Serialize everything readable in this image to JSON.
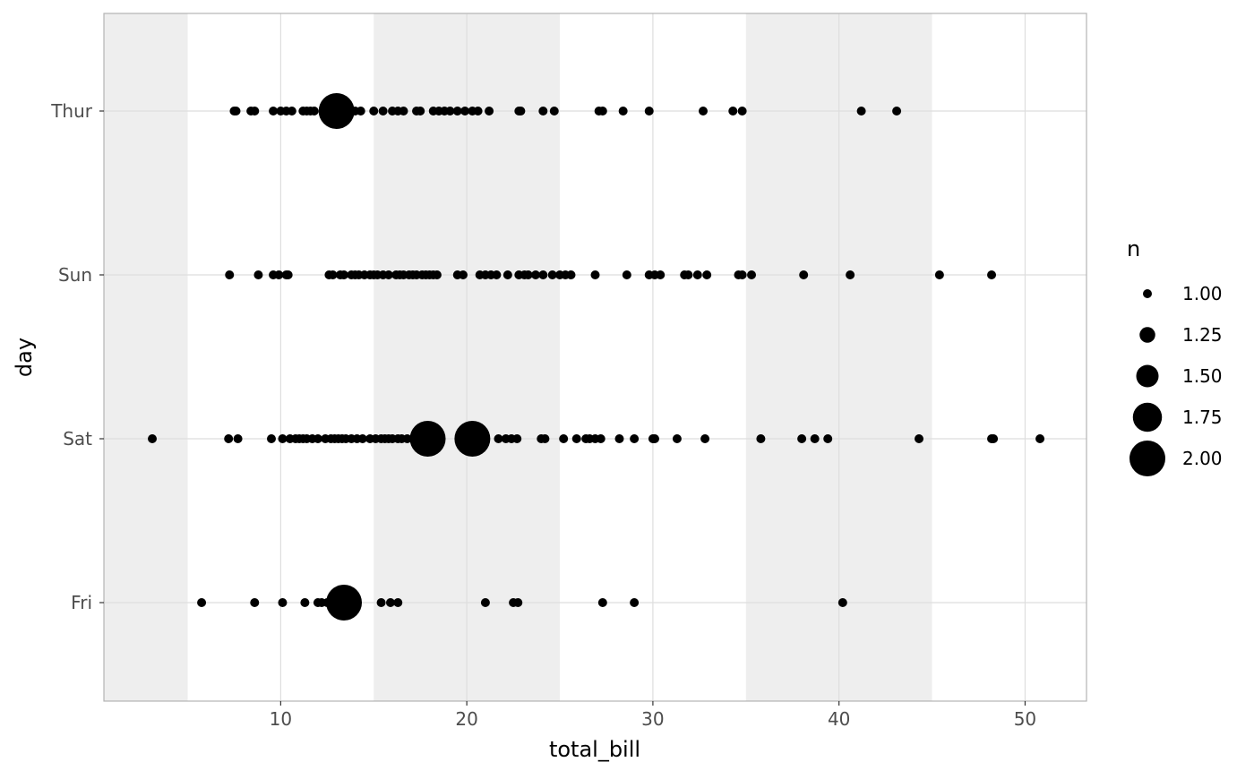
{
  "chart_data": {
    "type": "scatter",
    "xlabel": "total_bill",
    "ylabel": "day",
    "xlim": [
      0.5,
      53.3
    ],
    "x_ticks": [
      10,
      20,
      30,
      40,
      50
    ],
    "y_categories": [
      "Fri",
      "Sat",
      "Sun",
      "Thur"
    ],
    "shaded_x_bands": [
      [
        0.5,
        5
      ],
      [
        15,
        25
      ],
      [
        35,
        45
      ]
    ],
    "grid": true,
    "legend": {
      "title": "n",
      "position": "right",
      "entries": [
        {
          "label": "1.00",
          "value": 1.0
        },
        {
          "label": "1.25",
          "value": 1.25
        },
        {
          "label": "1.50",
          "value": 1.5
        },
        {
          "label": "1.75",
          "value": 1.75
        },
        {
          "label": "2.00",
          "value": 2.0
        }
      ]
    },
    "series": [
      {
        "day": "Thur",
        "points": [
          [
            7.5,
            1
          ],
          [
            7.6,
            1
          ],
          [
            8.4,
            1
          ],
          [
            8.6,
            1
          ],
          [
            9.6,
            1
          ],
          [
            10.0,
            1
          ],
          [
            10.3,
            1
          ],
          [
            10.6,
            1
          ],
          [
            11.2,
            1
          ],
          [
            11.4,
            1
          ],
          [
            11.6,
            1
          ],
          [
            11.8,
            1
          ],
          [
            13.0,
            2
          ],
          [
            14.0,
            1
          ],
          [
            14.3,
            1
          ],
          [
            15.0,
            1
          ],
          [
            15.5,
            1
          ],
          [
            16.0,
            1
          ],
          [
            16.3,
            1
          ],
          [
            16.6,
            1
          ],
          [
            17.3,
            1
          ],
          [
            17.5,
            1
          ],
          [
            18.2,
            1
          ],
          [
            18.5,
            1
          ],
          [
            18.8,
            1
          ],
          [
            19.1,
            1
          ],
          [
            19.5,
            1
          ],
          [
            19.9,
            1
          ],
          [
            20.3,
            1
          ],
          [
            20.6,
            1
          ],
          [
            21.2,
            1
          ],
          [
            22.8,
            1
          ],
          [
            22.9,
            1
          ],
          [
            24.1,
            1
          ],
          [
            24.7,
            1
          ],
          [
            27.1,
            1
          ],
          [
            27.3,
            1
          ],
          [
            28.4,
            1
          ],
          [
            29.8,
            1
          ],
          [
            32.7,
            1
          ],
          [
            34.3,
            1
          ],
          [
            34.8,
            1
          ],
          [
            41.2,
            1
          ],
          [
            43.1,
            1
          ]
        ]
      },
      {
        "day": "Sun",
        "points": [
          [
            7.25,
            1
          ],
          [
            8.8,
            1
          ],
          [
            9.6,
            1
          ],
          [
            9.9,
            1
          ],
          [
            10.3,
            1
          ],
          [
            10.4,
            1
          ],
          [
            12.6,
            1
          ],
          [
            12.8,
            1
          ],
          [
            13.2,
            1
          ],
          [
            13.4,
            1
          ],
          [
            13.8,
            1
          ],
          [
            14.0,
            1
          ],
          [
            14.2,
            1
          ],
          [
            14.5,
            1
          ],
          [
            14.8,
            1
          ],
          [
            15.0,
            1
          ],
          [
            15.2,
            1
          ],
          [
            15.5,
            1
          ],
          [
            15.8,
            1
          ],
          [
            16.2,
            1
          ],
          [
            16.4,
            1
          ],
          [
            16.6,
            1
          ],
          [
            16.9,
            1
          ],
          [
            17.1,
            1
          ],
          [
            17.3,
            1
          ],
          [
            17.6,
            1
          ],
          [
            17.8,
            1
          ],
          [
            18.0,
            1
          ],
          [
            18.2,
            1
          ],
          [
            18.4,
            1
          ],
          [
            19.5,
            1
          ],
          [
            19.8,
            1
          ],
          [
            20.7,
            1
          ],
          [
            21.0,
            1
          ],
          [
            21.3,
            1
          ],
          [
            21.6,
            1
          ],
          [
            22.2,
            1
          ],
          [
            22.8,
            1
          ],
          [
            23.1,
            1
          ],
          [
            23.3,
            1
          ],
          [
            23.7,
            1
          ],
          [
            24.1,
            1
          ],
          [
            24.6,
            1
          ],
          [
            25.0,
            1
          ],
          [
            25.3,
            1
          ],
          [
            25.6,
            1
          ],
          [
            26.9,
            1
          ],
          [
            28.6,
            1
          ],
          [
            29.8,
            1
          ],
          [
            30.1,
            1
          ],
          [
            30.4,
            1
          ],
          [
            31.7,
            1
          ],
          [
            31.9,
            1
          ],
          [
            32.4,
            1
          ],
          [
            32.9,
            1
          ],
          [
            34.6,
            1
          ],
          [
            34.8,
            1
          ],
          [
            35.3,
            1
          ],
          [
            38.1,
            1
          ],
          [
            40.6,
            1
          ],
          [
            45.4,
            1
          ],
          [
            48.2,
            1
          ]
        ]
      },
      {
        "day": "Sat",
        "points": [
          [
            3.1,
            1
          ],
          [
            7.2,
            1
          ],
          [
            7.7,
            1
          ],
          [
            9.5,
            1
          ],
          [
            10.1,
            1
          ],
          [
            10.5,
            1
          ],
          [
            10.8,
            1
          ],
          [
            11.0,
            1
          ],
          [
            11.2,
            1
          ],
          [
            11.4,
            1
          ],
          [
            11.7,
            1
          ],
          [
            12.0,
            1
          ],
          [
            12.4,
            1
          ],
          [
            12.7,
            1
          ],
          [
            12.9,
            1
          ],
          [
            13.1,
            1
          ],
          [
            13.3,
            1
          ],
          [
            13.5,
            1
          ],
          [
            13.8,
            1
          ],
          [
            14.1,
            1
          ],
          [
            14.4,
            1
          ],
          [
            14.8,
            1
          ],
          [
            15.1,
            1
          ],
          [
            15.4,
            1
          ],
          [
            15.6,
            1
          ],
          [
            15.8,
            1
          ],
          [
            16.0,
            1
          ],
          [
            16.3,
            1
          ],
          [
            16.5,
            1
          ],
          [
            16.8,
            1
          ],
          [
            17.9,
            2
          ],
          [
            18.6,
            1
          ],
          [
            20.3,
            2
          ],
          [
            21.7,
            1
          ],
          [
            22.1,
            1
          ],
          [
            22.4,
            1
          ],
          [
            22.7,
            1
          ],
          [
            24.0,
            1
          ],
          [
            24.2,
            1
          ],
          [
            25.2,
            1
          ],
          [
            25.9,
            1
          ],
          [
            26.4,
            1
          ],
          [
            26.6,
            1
          ],
          [
            26.9,
            1
          ],
          [
            27.2,
            1
          ],
          [
            28.2,
            1
          ],
          [
            29.0,
            1
          ],
          [
            30.0,
            1
          ],
          [
            30.1,
            1
          ],
          [
            31.3,
            1
          ],
          [
            32.8,
            1
          ],
          [
            35.8,
            1
          ],
          [
            38.0,
            1
          ],
          [
            38.7,
            1
          ],
          [
            39.4,
            1
          ],
          [
            44.3,
            1
          ],
          [
            48.2,
            1
          ],
          [
            48.3,
            1
          ],
          [
            50.8,
            1
          ]
        ]
      },
      {
        "day": "Fri",
        "points": [
          [
            5.75,
            1
          ],
          [
            8.6,
            1
          ],
          [
            10.1,
            1
          ],
          [
            11.3,
            1
          ],
          [
            12.0,
            1
          ],
          [
            12.2,
            1
          ],
          [
            12.5,
            1
          ],
          [
            13.4,
            2
          ],
          [
            15.4,
            1
          ],
          [
            15.9,
            1
          ],
          [
            16.3,
            1
          ],
          [
            21.0,
            1
          ],
          [
            22.5,
            1
          ],
          [
            22.75,
            1
          ],
          [
            27.3,
            1
          ],
          [
            29.0,
            1
          ],
          [
            40.2,
            1
          ]
        ]
      }
    ]
  }
}
